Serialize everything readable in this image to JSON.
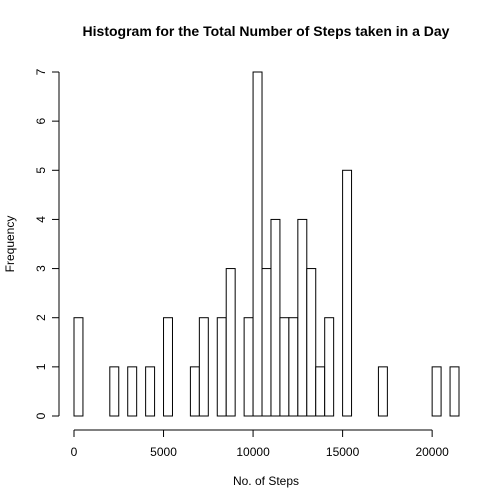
{
  "chart_data": {
    "type": "bar",
    "title": "Histogram for the Total Number of Steps taken in a Day",
    "xlabel": "No. of Steps",
    "ylabel": "Frequency",
    "bin_width": 500,
    "x_start": 0,
    "xlim": [
      0,
      21500
    ],
    "ylim": [
      0,
      7
    ],
    "x_ticks": [
      0,
      5000,
      10000,
      15000,
      20000
    ],
    "y_ticks": [
      0,
      1,
      2,
      3,
      4,
      5,
      6,
      7
    ],
    "values": [
      2,
      0,
      0,
      0,
      1,
      0,
      1,
      0,
      1,
      0,
      2,
      0,
      0,
      1,
      2,
      0,
      2,
      3,
      0,
      2,
      7,
      3,
      4,
      2,
      2,
      4,
      3,
      1,
      2,
      0,
      5,
      0,
      0,
      0,
      1,
      0,
      0,
      0,
      0,
      0,
      1,
      0,
      1
    ]
  }
}
